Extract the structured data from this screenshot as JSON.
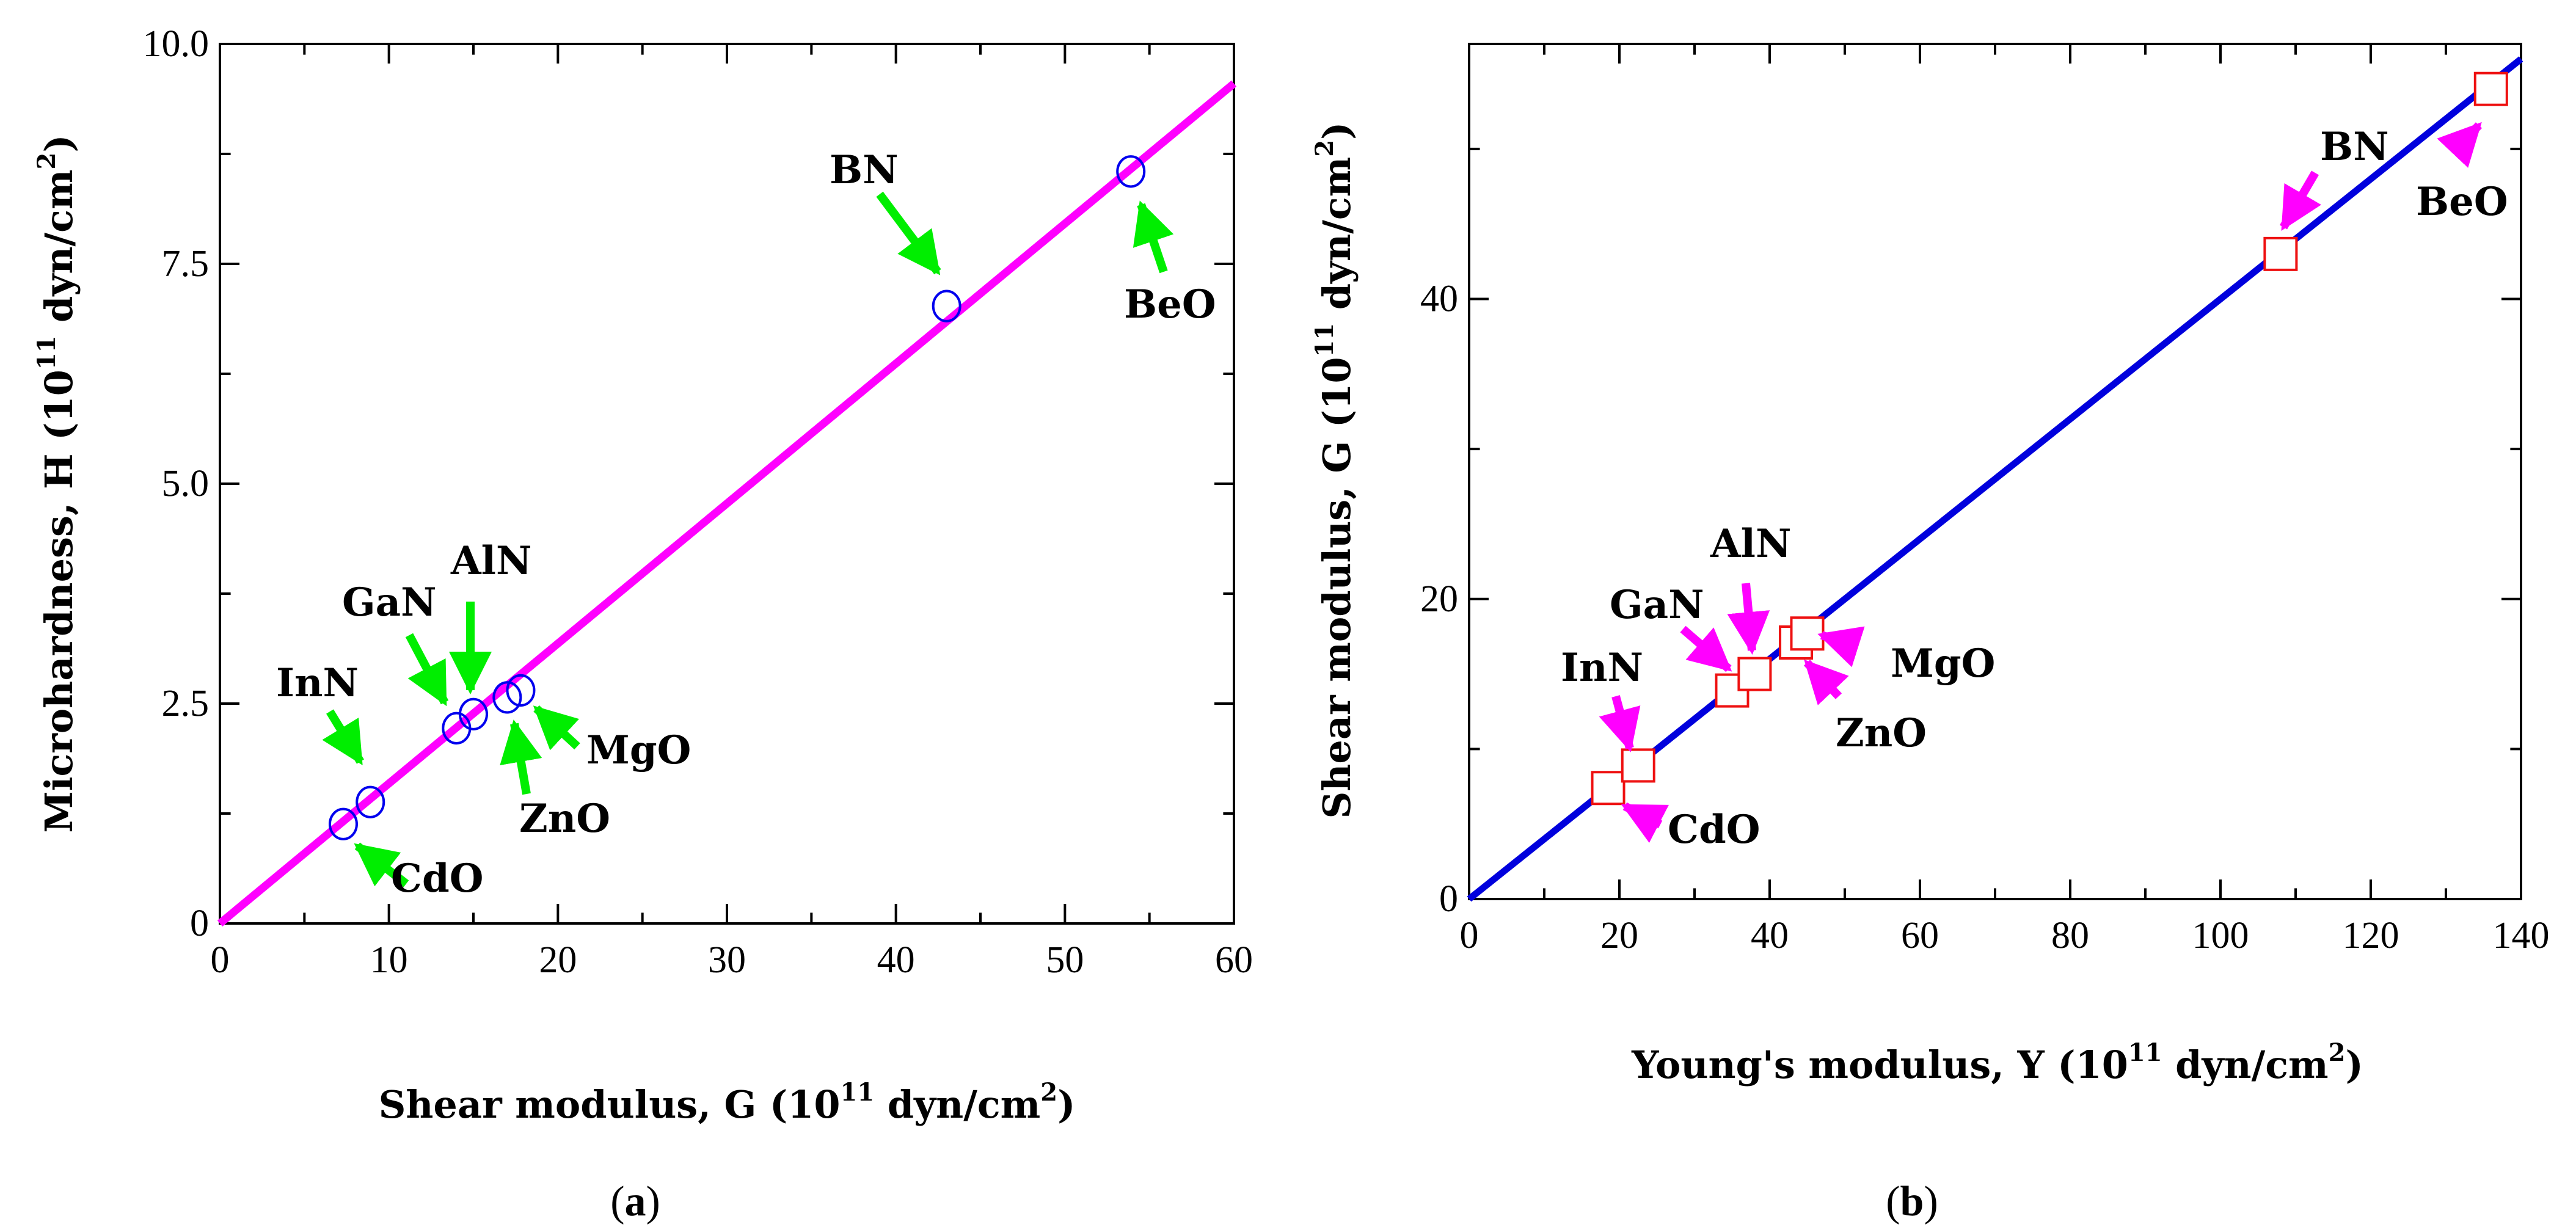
{
  "chart_data": [
    {
      "id": "a",
      "type": "scatter",
      "caption": {
        "open": "(",
        "letter": "a",
        "close": ")"
      },
      "xlabel": {
        "pre": "Shear modulus, G (10",
        "sup1": "11",
        "mid": " dyn/cm",
        "sup2": "2",
        "post": ")"
      },
      "ylabel": {
        "pre": "Microhardness, H (10",
        "sup1": "11",
        "mid": " dyn/cm",
        "sup2": "2",
        "post": ")"
      },
      "xlim": [
        0,
        60
      ],
      "ylim": [
        0,
        10
      ],
      "xticks": [
        0,
        10,
        20,
        30,
        40,
        50,
        60
      ],
      "xtick_labels": [
        "0",
        "10",
        "20",
        "30",
        "40",
        "50",
        "60"
      ],
      "yticks": [
        0,
        2.5,
        5,
        7.5,
        10
      ],
      "ytick_labels": [
        "0",
        "2.5",
        "5.0",
        "7.5",
        "10.0"
      ],
      "marker": "circle",
      "marker_color": "#0000ee",
      "line_color": "#ff00ff",
      "arrow_color": "#00ee00",
      "fit_line": {
        "x": [
          0,
          60
        ],
        "y": [
          0,
          9.55
        ]
      },
      "points": [
        {
          "label": "CdO",
          "x": 7.3,
          "y": 1.13
        },
        {
          "label": "InN",
          "x": 8.9,
          "y": 1.38
        },
        {
          "label": "GaN",
          "x": 14.0,
          "y": 2.22
        },
        {
          "label": "AlN",
          "x": 15.0,
          "y": 2.38
        },
        {
          "label": "ZnO",
          "x": 17.0,
          "y": 2.57
        },
        {
          "label": "MgO",
          "x": 17.8,
          "y": 2.65
        },
        {
          "label": "BN",
          "x": 43.0,
          "y": 7.02
        },
        {
          "label": "BeO",
          "x": 53.9,
          "y": 8.55
        }
      ]
    },
    {
      "id": "b",
      "type": "scatter",
      "caption": {
        "open": "(",
        "letter": "b",
        "close": ")"
      },
      "xlabel": {
        "pre": "Young's modulus, Y (10",
        "sup1": "11",
        "mid": " dyn/cm",
        "sup2": "2",
        "post": ")"
      },
      "ylabel": {
        "pre": "Shear modulus, G (10",
        "sup1": "11",
        "mid": " dyn/cm",
        "sup2": "2",
        "post": ")"
      },
      "xlim": [
        0,
        140
      ],
      "ylim": [
        0,
        57
      ],
      "xticks": [
        0,
        20,
        40,
        60,
        80,
        100,
        120,
        140
      ],
      "xtick_labels": [
        "0",
        "20",
        "40",
        "60",
        "80",
        "100",
        "120",
        "140"
      ],
      "yticks": [
        0,
        20,
        40
      ],
      "ytick_labels": [
        "0",
        "20",
        "40"
      ],
      "minor_yticks": [
        10,
        30,
        50
      ],
      "marker": "square",
      "marker_color": "#ee1111",
      "line_color": "#0000dd",
      "arrow_color": "#ff00ff",
      "fit_line": {
        "x": [
          0,
          140
        ],
        "y": [
          0,
          56
        ]
      },
      "points": [
        {
          "label": "CdO",
          "x": 18.5,
          "y": 7.4
        },
        {
          "label": "InN",
          "x": 22.5,
          "y": 8.9
        },
        {
          "label": "GaN",
          "x": 35.0,
          "y": 13.9
        },
        {
          "label": "AlN",
          "x": 38.0,
          "y": 15.0
        },
        {
          "label": "ZnO",
          "x": 43.5,
          "y": 17.1
        },
        {
          "label": "MgO",
          "x": 45.0,
          "y": 17.7
        },
        {
          "label": "BN",
          "x": 108.0,
          "y": 43.0
        },
        {
          "label": "BeO",
          "x": 136.0,
          "y": 54.0
        }
      ]
    }
  ]
}
